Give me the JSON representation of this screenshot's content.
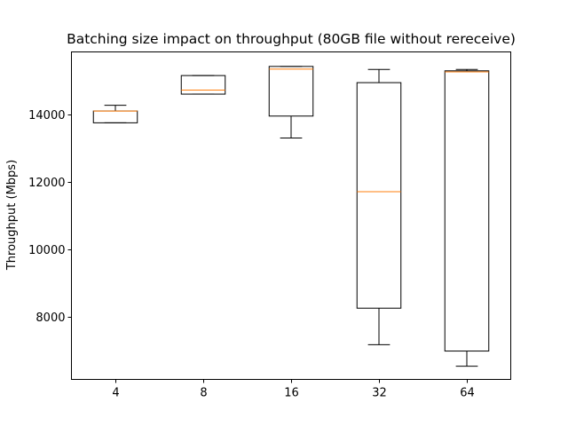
{
  "chart_data": {
    "type": "box",
    "title": "Batching size impact on throughput (80GB file without rereceive)",
    "xlabel": "",
    "ylabel": "Throughput (Mbps)",
    "ylim": [
      6150,
      15850
    ],
    "yticks": [
      8000,
      10000,
      12000,
      14000
    ],
    "ytick_labels": [
      "8000",
      "10000",
      "12000",
      "14000"
    ],
    "categories": [
      "4",
      "8",
      "16",
      "32",
      "64"
    ],
    "boxes": [
      {
        "category": "4",
        "whisker_low": 13750,
        "q1": 13750,
        "median": 14100,
        "q3": 14100,
        "whisker_high": 14270
      },
      {
        "category": "8",
        "whisker_low": 14600,
        "q1": 14600,
        "median": 14720,
        "q3": 15150,
        "whisker_high": 15150
      },
      {
        "category": "16",
        "whisker_low": 13300,
        "q1": 13950,
        "median": 15340,
        "q3": 15420,
        "whisker_high": 15420
      },
      {
        "category": "32",
        "whisker_low": 7180,
        "q1": 8260,
        "median": 11710,
        "q3": 14940,
        "whisker_high": 15330
      },
      {
        "category": "64",
        "whisker_low": 6540,
        "q1": 6990,
        "median": 15260,
        "q3": 15290,
        "whisker_high": 15330
      }
    ],
    "grid": false,
    "legend": "none",
    "colors": {
      "box": "#000000",
      "median": "#ff7f0e",
      "background": "#ffffff"
    }
  }
}
